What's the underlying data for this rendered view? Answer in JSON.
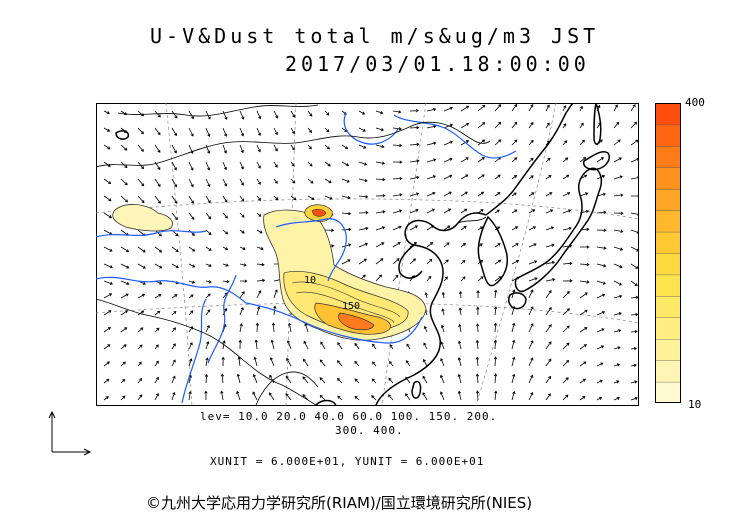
{
  "header": {
    "title_line1": "U-V&Dust total m/s&ug/m3 JST",
    "title_line2": "2017/03/01.18:00:00"
  },
  "colorbar": {
    "max_label": "400",
    "min_label": "10",
    "colors": [
      "#fff9d0",
      "#fff6b5",
      "#fff29a",
      "#ffee80",
      "#ffe966",
      "#ffe44d",
      "#ffd940",
      "#ffc933",
      "#ffb82b",
      "#ffa525",
      "#ff921f",
      "#ff7d19",
      "#ff6613",
      "#ff4e0d"
    ]
  },
  "contour_labels": {
    "label_10": "10",
    "label_150": "150"
  },
  "legend": {
    "levels_line1": "lev= 10.0 20.0 40.0 60.0 100. 150. 200.",
    "levels_line2": "300. 400.",
    "units": "XUNIT = 6.000E+01, YUNIT = 6.000E+01"
  },
  "footer": {
    "credit": "©九州大学応用力学研究所(RIAM)/国立環境研究所(NIES)"
  },
  "colors": {
    "coast": "#000000",
    "river": "#1a5cff",
    "grid": "#888888"
  }
}
